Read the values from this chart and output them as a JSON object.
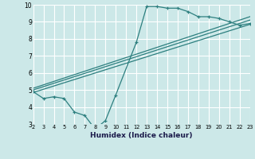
{
  "xlabel": "Humidex (Indice chaleur)",
  "xlim": [
    2,
    23
  ],
  "ylim": [
    3,
    10
  ],
  "xticks": [
    2,
    3,
    4,
    5,
    6,
    7,
    8,
    9,
    10,
    11,
    12,
    13,
    14,
    15,
    16,
    17,
    18,
    19,
    20,
    21,
    22,
    23
  ],
  "yticks": [
    3,
    4,
    5,
    6,
    7,
    8,
    9,
    10
  ],
  "bg_color": "#cce8e8",
  "line_color": "#2d7f7f",
  "grid_color": "#ffffff",
  "line1_x": [
    2,
    3,
    4,
    5,
    6,
    7,
    8,
    9,
    10,
    12,
    13,
    14,
    15,
    16,
    17,
    18,
    19,
    20,
    21,
    22,
    23
  ],
  "line1_y": [
    4.9,
    4.5,
    4.6,
    4.5,
    3.7,
    3.5,
    2.7,
    3.2,
    4.7,
    7.8,
    9.9,
    9.9,
    9.8,
    9.8,
    9.6,
    9.3,
    9.3,
    9.2,
    9.0,
    8.8,
    8.9
  ],
  "line2_x": [
    2,
    23
  ],
  "line2_y": [
    5.0,
    9.1
  ],
  "line3_x": [
    2,
    23
  ],
  "line3_y": [
    5.1,
    9.3
  ],
  "line4_x": [
    2,
    23
  ],
  "line4_y": [
    4.85,
    8.85
  ]
}
